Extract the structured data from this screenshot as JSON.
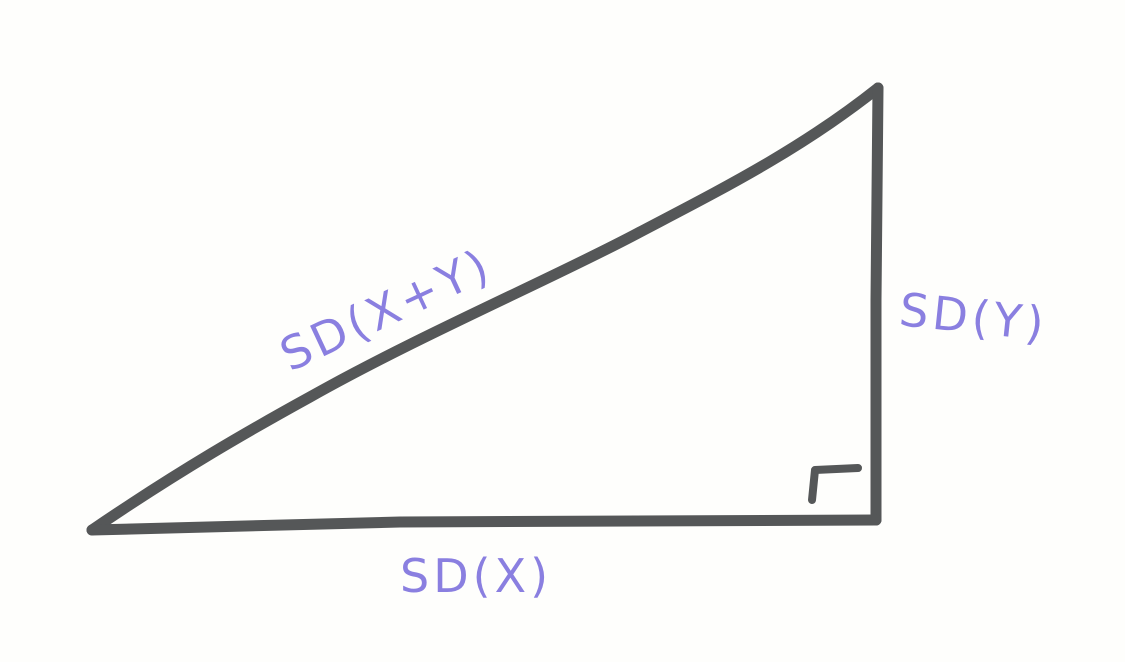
{
  "diagram": {
    "type": "right-triangle",
    "labels": {
      "hypotenuse": "SD(X+Y)",
      "vertical_leg": "SD(Y)",
      "horizontal_leg": "SD(X)"
    },
    "right_angle_marker": true,
    "colors": {
      "lines": "#555758",
      "labels": "#8a7fe0",
      "background": "#fefefc"
    }
  }
}
